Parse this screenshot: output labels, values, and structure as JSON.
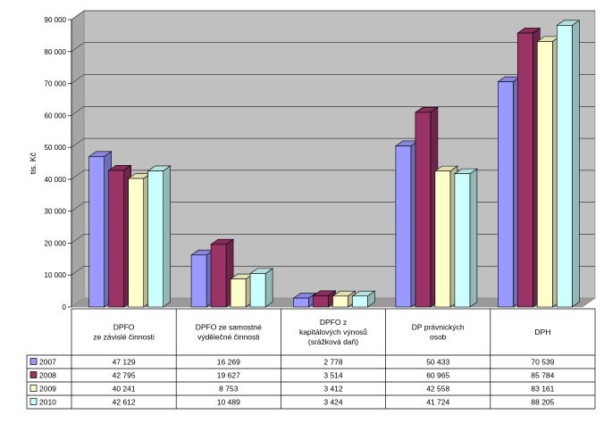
{
  "chart_data": {
    "type": "bar",
    "ylabel": "tis. Kč",
    "ylim": [
      0,
      90000
    ],
    "yticks": [
      0,
      10000,
      20000,
      30000,
      40000,
      50000,
      60000,
      70000,
      80000,
      90000
    ],
    "ytick_labels": [
      "0",
      "10 000",
      "20 000",
      "30 000",
      "40 000",
      "50 000",
      "60 000",
      "70 000",
      "80 000",
      "90 000"
    ],
    "grid": true,
    "legend": "table-left",
    "categories": [
      [
        "DPFO",
        "ze závislé činnosti"
      ],
      [
        "DPFO ze samostné",
        "výdělečné činnosti"
      ],
      [
        "DPFO z",
        "kapitálových výnosů",
        "(srážková daň)"
      ],
      [
        "DP právnických",
        "osob"
      ],
      [
        "DPH"
      ]
    ],
    "series": [
      {
        "name": "2007",
        "color": "#9999ff",
        "values": [
          47129,
          16269,
          2778,
          50433,
          70539
        ],
        "labels": [
          "47 129",
          "16 269",
          "2 778",
          "50 433",
          "70 539"
        ]
      },
      {
        "name": "2008",
        "color": "#993366",
        "values": [
          42795,
          19627,
          3514,
          60965,
          85784
        ],
        "labels": [
          "42 795",
          "19 627",
          "3 514",
          "60 965",
          "85 784"
        ]
      },
      {
        "name": "2009",
        "color": "#ffffcc",
        "values": [
          40241,
          8753,
          3412,
          42558,
          83161
        ],
        "labels": [
          "40 241",
          "8 753",
          "3 412",
          "42 558",
          "83 161"
        ]
      },
      {
        "name": "2010",
        "color": "#ccffff",
        "values": [
          42612,
          10489,
          3424,
          41724,
          88205
        ],
        "labels": [
          "42 612",
          "10 489",
          "3 424",
          "41 724",
          "88 205"
        ]
      }
    ]
  }
}
